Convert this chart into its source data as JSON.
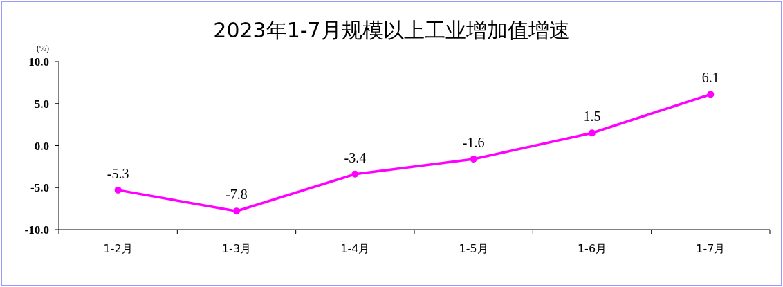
{
  "chart_data": {
    "type": "line",
    "title": "2023年1-7月规模以上工业增加值增速",
    "ylabel": "(%)",
    "categories": [
      "1-2月",
      "1-3月",
      "1-4月",
      "1-5月",
      "1-6月",
      "1-7月"
    ],
    "series": [
      {
        "color": "#ff00ff",
        "values": [
          -5.3,
          -7.8,
          -3.4,
          -1.6,
          1.5,
          6.1
        ]
      }
    ],
    "ylim": [
      -10,
      10
    ],
    "yticks": [
      {
        "value": 10,
        "label": "10.0"
      },
      {
        "value": 5,
        "label": "5.0"
      },
      {
        "value": 0,
        "label": "0.0"
      },
      {
        "value": -5,
        "label": "-5.0"
      },
      {
        "value": -10,
        "label": "-10.0"
      }
    ],
    "data_labels": true,
    "marker": "circle",
    "line_style": "solid",
    "grid": false
  }
}
